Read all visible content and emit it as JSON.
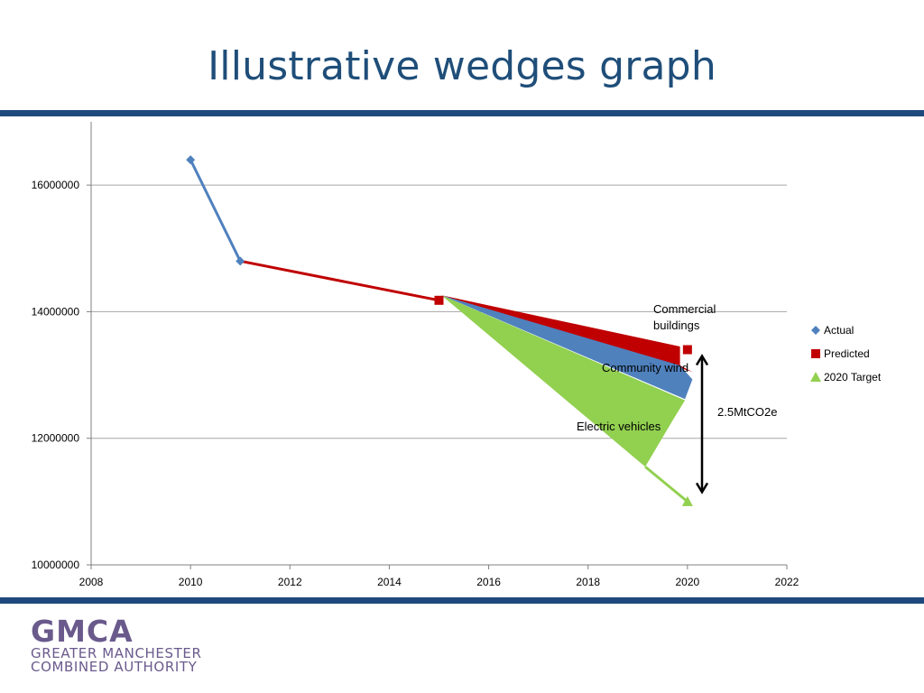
{
  "slide": {
    "title": "Illustrative wedges graph"
  },
  "logo": {
    "mark": "GMCA",
    "line1": "GREATER MANCHESTER",
    "line2": "COMBINED AUTHORITY",
    "color": "#6a5a8c"
  },
  "colors": {
    "title": "#1f4e79",
    "rule": "#1f497d",
    "actual": "#4f81bd",
    "predicted": "#c00000",
    "target": "#92d050"
  },
  "chart_data": {
    "type": "line",
    "title": "",
    "xlabel": "",
    "ylabel": "",
    "xlim": [
      2008,
      2022
    ],
    "ylim": [
      10000000,
      17000000
    ],
    "x_ticks": [
      2008,
      2010,
      2012,
      2014,
      2016,
      2018,
      2020,
      2022
    ],
    "y_ticks": [
      10000000,
      12000000,
      14000000,
      16000000
    ],
    "grid": "horizontal",
    "legend_position": "right",
    "series": [
      {
        "name": "Actual",
        "color": "#4f81bd",
        "marker": "diamond",
        "points": [
          [
            2010,
            16400000
          ],
          [
            2011,
            14800000
          ]
        ]
      },
      {
        "name": "Predicted",
        "color": "#c00000",
        "marker": "square",
        "points": [
          [
            2011,
            14800000
          ],
          [
            2015,
            14180000
          ],
          [
            2020,
            13400000
          ]
        ]
      },
      {
        "name": "2020 Target",
        "color": "#92d050",
        "marker": "triangle",
        "points": [
          [
            2019.15,
            11550000
          ],
          [
            2020,
            11000000
          ]
        ]
      }
    ],
    "wedges": [
      {
        "label": "Commercial buildings",
        "color": "#c00000",
        "polygon": [
          [
            2015.05,
            14260000
          ],
          [
            2019.85,
            13450000
          ],
          [
            2019.85,
            13150000
          ],
          [
            2020.1,
            13050000
          ]
        ]
      },
      {
        "label": "Community wind",
        "color": "#4f81bd",
        "polygon": [
          [
            2015.05,
            14260000
          ],
          [
            2019.85,
            13150000
          ],
          [
            2020.1,
            12930000
          ],
          [
            2019.95,
            12620000
          ]
        ]
      },
      {
        "label": "Electric vehicles",
        "color": "#92d050",
        "polygon": [
          [
            2015.05,
            14260000
          ],
          [
            2019.95,
            12600000
          ],
          [
            2019.7,
            12280000
          ],
          [
            2019.15,
            11550000
          ]
        ]
      }
    ],
    "annotations": [
      {
        "text": "Commercial",
        "line2": "buildings",
        "x": 2019.7,
        "y": 13920000
      },
      {
        "text": "Community wind",
        "x": 2019.3,
        "y": 12900000
      },
      {
        "text": "Electric vehicles",
        "x": 2018.7,
        "y": 11950000
      },
      {
        "text": "2.5MtCO2e",
        "x": 2020.6,
        "y": 12350000
      }
    ],
    "arrow": {
      "x": 2020.3,
      "y_top": 13300000,
      "y_bottom": 11150000
    }
  }
}
